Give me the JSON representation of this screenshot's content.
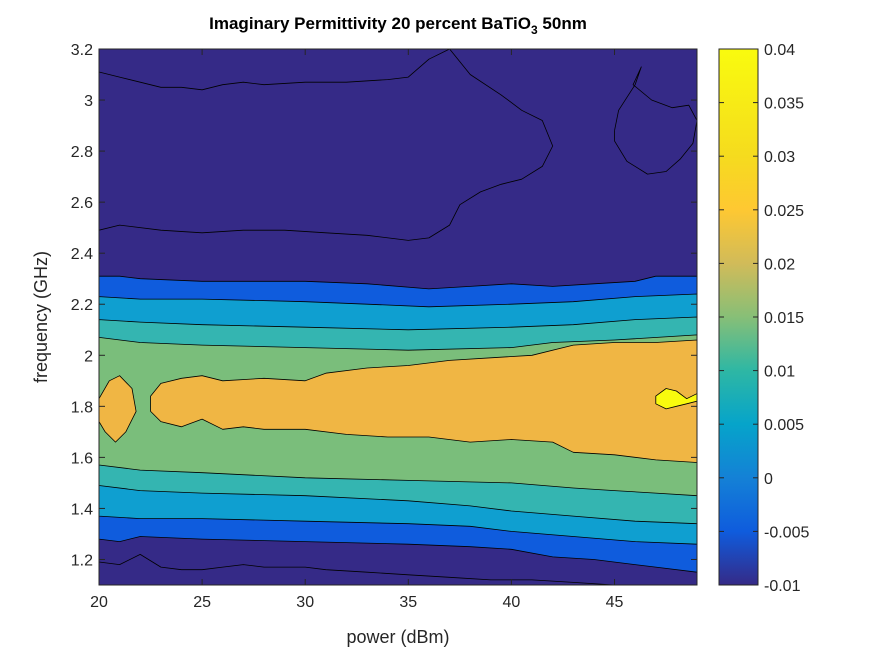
{
  "chart_data": {
    "type": "heatmap",
    "subtype": "filled-contour",
    "title": {
      "main": "Imaginary Permittivity 20 percent BaTiO",
      "subscript": "3",
      "suffix": " 50nm"
    },
    "xlabel": "power (dBm)",
    "ylabel": "frequency (GHz)",
    "xlim": [
      20,
      49
    ],
    "ylim": [
      1.1,
      3.2
    ],
    "x_ticks": [
      20,
      25,
      30,
      35,
      40,
      45
    ],
    "y_ticks": [
      1.2,
      1.4,
      1.6,
      1.8,
      2,
      2.2,
      2.4,
      2.6,
      2.8,
      3,
      3.2
    ],
    "x_tick_labels": [
      "20",
      "25",
      "30",
      "35",
      "40",
      "45"
    ],
    "y_tick_labels": [
      "1.2",
      "1.4",
      "1.6",
      "1.8",
      "2",
      "2.2",
      "2.4",
      "2.6",
      "2.8",
      "3",
      "3.2"
    ],
    "colorbar": {
      "range": [
        -0.01,
        0.04
      ],
      "ticks": [
        -0.01,
        -0.005,
        0,
        0.005,
        0.01,
        0.015,
        0.02,
        0.025,
        0.03,
        0.035,
        0.04
      ],
      "tick_labels": [
        "-0.01",
        "-0.005",
        "0",
        "0.005",
        "0.01",
        "0.015",
        "0.02",
        "0.025",
        "0.03",
        "0.035",
        "0.04"
      ],
      "colormap": "parula"
    },
    "contour_levels": [
      -0.005,
      0,
      0.005,
      0.01,
      0.015,
      0.02,
      0.025,
      0.03,
      0.035
    ],
    "band_colors": [
      "#352a87",
      "#0f5cdd",
      "#0f9fd0",
      "#34b5b1",
      "#7abe7b",
      "#f0b644",
      "#f9fb0e"
    ],
    "background_color": "#352a87",
    "contour_line_color": "#000000",
    "regions": [
      {
        "name": "band-blue",
        "color": "#0f5cdd",
        "upper": [
          [
            20,
            2.31
          ],
          [
            21,
            2.31
          ],
          [
            22,
            2.3
          ],
          [
            25,
            2.29
          ],
          [
            30,
            2.29
          ],
          [
            33,
            2.28
          ],
          [
            36,
            2.26
          ],
          [
            38,
            2.27
          ],
          [
            40,
            2.28
          ],
          [
            42,
            2.27
          ],
          [
            44,
            2.28
          ],
          [
            46,
            2.29
          ],
          [
            47,
            2.31
          ],
          [
            49,
            2.31
          ]
        ],
        "lower": [
          [
            20,
            1.28
          ],
          [
            21,
            1.27
          ],
          [
            22,
            1.29
          ],
          [
            25,
            1.28
          ],
          [
            30,
            1.27
          ],
          [
            35,
            1.26
          ],
          [
            38,
            1.25
          ],
          [
            40,
            1.24
          ],
          [
            42,
            1.21
          ],
          [
            44,
            1.2
          ],
          [
            46,
            1.18
          ],
          [
            47,
            1.17
          ],
          [
            49,
            1.15
          ]
        ]
      },
      {
        "name": "band-cyan",
        "color": "#0f9fd0",
        "upper": [
          [
            20,
            2.23
          ],
          [
            22,
            2.22
          ],
          [
            25,
            2.22
          ],
          [
            30,
            2.21
          ],
          [
            33,
            2.2
          ],
          [
            36,
            2.19
          ],
          [
            40,
            2.2
          ],
          [
            43,
            2.21
          ],
          [
            46,
            2.23
          ],
          [
            49,
            2.24
          ]
        ],
        "lower": [
          [
            20,
            1.37
          ],
          [
            22,
            1.36
          ],
          [
            25,
            1.36
          ],
          [
            30,
            1.35
          ],
          [
            35,
            1.34
          ],
          [
            38,
            1.33
          ],
          [
            40,
            1.31
          ],
          [
            43,
            1.29
          ],
          [
            46,
            1.27
          ],
          [
            49,
            1.26
          ]
        ]
      },
      {
        "name": "band-teal",
        "color": "#34b5b1",
        "upper": [
          [
            20,
            2.14
          ],
          [
            22,
            2.13
          ],
          [
            25,
            2.12
          ],
          [
            30,
            2.11
          ],
          [
            35,
            2.1
          ],
          [
            40,
            2.11
          ],
          [
            43,
            2.12
          ],
          [
            46,
            2.14
          ],
          [
            49,
            2.15
          ]
        ],
        "lower": [
          [
            20,
            1.49
          ],
          [
            22,
            1.47
          ],
          [
            25,
            1.46
          ],
          [
            30,
            1.45
          ],
          [
            35,
            1.43
          ],
          [
            38,
            1.41
          ],
          [
            40,
            1.39
          ],
          [
            43,
            1.37
          ],
          [
            46,
            1.35
          ],
          [
            49,
            1.34
          ]
        ]
      },
      {
        "name": "band-green",
        "color": "#7abe7b",
        "upper": [
          [
            20,
            2.07
          ],
          [
            22,
            2.05
          ],
          [
            25,
            2.04
          ],
          [
            30,
            2.03
          ],
          [
            35,
            2.02
          ],
          [
            40,
            2.03
          ],
          [
            42,
            2.05
          ],
          [
            45,
            2.06
          ],
          [
            49,
            2.08
          ]
        ],
        "lower": [
          [
            20,
            1.57
          ],
          [
            22,
            1.55
          ],
          [
            25,
            1.54
          ],
          [
            30,
            1.52
          ],
          [
            35,
            1.51
          ],
          [
            40,
            1.5
          ],
          [
            43,
            1.48
          ],
          [
            45,
            1.47
          ],
          [
            47,
            1.46
          ],
          [
            49,
            1.45
          ]
        ]
      },
      {
        "name": "band-orange-left",
        "color": "#f0b644",
        "polygon": [
          [
            20,
            1.83
          ],
          [
            20.5,
            1.9
          ],
          [
            21,
            1.92
          ],
          [
            21.6,
            1.87
          ],
          [
            21.8,
            1.78
          ],
          [
            21.3,
            1.7
          ],
          [
            20.8,
            1.66
          ],
          [
            20.3,
            1.7
          ],
          [
            20,
            1.74
          ]
        ]
      },
      {
        "name": "band-orange-main",
        "color": "#f0b644",
        "polygon": [
          [
            22.5,
            1.84
          ],
          [
            23,
            1.89
          ],
          [
            24,
            1.91
          ],
          [
            25,
            1.92
          ],
          [
            26,
            1.9
          ],
          [
            28,
            1.91
          ],
          [
            30,
            1.9
          ],
          [
            31,
            1.93
          ],
          [
            33,
            1.95
          ],
          [
            35,
            1.96
          ],
          [
            37,
            1.98
          ],
          [
            39,
            1.99
          ],
          [
            41,
            2
          ],
          [
            43,
            2.04
          ],
          [
            45,
            2.05
          ],
          [
            47,
            2.05
          ],
          [
            49,
            2.06
          ],
          [
            49,
            1.58
          ],
          [
            47,
            1.59
          ],
          [
            45,
            1.61
          ],
          [
            43,
            1.62
          ],
          [
            42,
            1.66
          ],
          [
            40,
            1.67
          ],
          [
            38,
            1.66
          ],
          [
            36,
            1.68
          ],
          [
            34,
            1.68
          ],
          [
            32,
            1.69
          ],
          [
            30,
            1.71
          ],
          [
            28,
            1.71
          ],
          [
            27,
            1.72
          ],
          [
            26,
            1.71
          ],
          [
            25,
            1.75
          ],
          [
            24,
            1.72
          ],
          [
            23,
            1.74
          ],
          [
            22.5,
            1.78
          ]
        ]
      },
      {
        "name": "band-yellow",
        "color": "#f9fb0e",
        "polygon": [
          [
            47,
            1.84
          ],
          [
            47.5,
            1.87
          ],
          [
            48,
            1.86
          ],
          [
            48.5,
            1.83
          ],
          [
            49,
            1.85
          ],
          [
            49,
            1.82
          ],
          [
            48.5,
            1.81
          ],
          [
            48,
            1.8
          ],
          [
            47.5,
            1.79
          ],
          [
            47,
            1.81
          ]
        ]
      }
    ],
    "contour_lines": [
      {
        "name": "upper-zero-line",
        "points": [
          [
            20,
            3.11
          ],
          [
            21,
            3.09
          ],
          [
            22,
            3.07
          ],
          [
            23,
            3.05
          ],
          [
            24,
            3.05
          ],
          [
            25,
            3.04
          ],
          [
            26,
            3.06
          ],
          [
            27,
            3.07
          ],
          [
            28,
            3.06
          ],
          [
            30,
            3.07
          ],
          [
            32,
            3.07
          ],
          [
            34,
            3.08
          ],
          [
            35,
            3.09
          ],
          [
            36,
            3.16
          ],
          [
            37,
            3.2
          ]
        ]
      },
      {
        "name": "upper-zero-line-right",
        "points": [
          [
            37,
            3.2
          ],
          [
            38,
            3.1
          ],
          [
            39.5,
            3.02
          ],
          [
            40.5,
            2.96
          ],
          [
            41.5,
            2.92
          ],
          [
            42,
            2.82
          ],
          [
            41.5,
            2.74
          ],
          [
            40.5,
            2.69
          ],
          [
            39.5,
            2.67
          ],
          [
            38.5,
            2.64
          ],
          [
            37.5,
            2.59
          ],
          [
            37,
            2.51
          ],
          [
            36,
            2.46
          ],
          [
            35,
            2.45
          ],
          [
            33,
            2.47
          ],
          [
            31,
            2.48
          ],
          [
            29,
            2.49
          ],
          [
            27,
            2.49
          ],
          [
            25,
            2.48
          ],
          [
            23,
            2.49
          ],
          [
            21,
            2.51
          ],
          [
            20,
            2.49
          ]
        ]
      },
      {
        "name": "closed-loop-right",
        "points": [
          [
            45,
            2.88
          ],
          [
            45.2,
            2.96
          ],
          [
            46,
            3.06
          ],
          [
            46.3,
            3.13
          ],
          [
            45.9,
            3.06
          ],
          [
            46.8,
            3
          ],
          [
            47.8,
            2.97
          ],
          [
            48.6,
            2.98
          ],
          [
            49,
            2.92
          ],
          [
            48.8,
            2.83
          ],
          [
            48.2,
            2.77
          ],
          [
            47.5,
            2.72
          ],
          [
            46.6,
            2.71
          ],
          [
            45.6,
            2.76
          ],
          [
            45,
            2.84
          ],
          [
            45,
            2.88
          ]
        ]
      },
      {
        "name": "lower-zero-line",
        "points": [
          [
            20,
            1.19
          ],
          [
            21,
            1.18
          ],
          [
            22,
            1.22
          ],
          [
            23,
            1.17
          ],
          [
            24,
            1.16
          ],
          [
            25,
            1.16
          ],
          [
            26,
            1.17
          ],
          [
            27,
            1.18
          ],
          [
            28,
            1.17
          ],
          [
            30,
            1.17
          ],
          [
            31,
            1.16
          ],
          [
            33,
            1.15
          ],
          [
            35,
            1.14
          ],
          [
            37,
            1.13
          ],
          [
            39,
            1.12
          ],
          [
            41,
            1.12
          ],
          [
            43,
            1.11
          ],
          [
            45,
            1.1
          ]
        ]
      }
    ]
  }
}
